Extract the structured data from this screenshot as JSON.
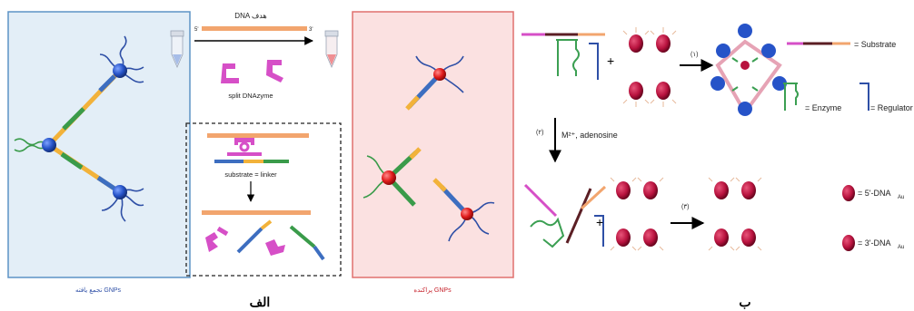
{
  "panel_a": {
    "target_label": "DNA هدف",
    "split_label": "split DNAzyme",
    "substrate_label": "substrate = linker",
    "left_caption": "GNPs تجمع یافته",
    "right_caption": "GNPs پراکنده",
    "panel_letter": "الف",
    "end5": "5'",
    "end3": "3'"
  },
  "panel_b": {
    "step1": "(۱)",
    "step2": "(۲)",
    "step3": "(۳)",
    "ion_label": "M²⁺, adenosine",
    "legend_substrate": "= Substrate",
    "legend_enzyme": "= Enzyme",
    "legend_regulator": "= Regulator",
    "legend_5dna": "= 5'-DNA",
    "legend_3dna": "= 3'-DNA",
    "legend_sub_au": "Au",
    "panel_letter": "ب",
    "plus": "+"
  },
  "colors": {
    "blue_panel_bg": "#e3eef7",
    "blue_panel_border": "#5d93c6",
    "red_panel_bg": "#fbe1e1",
    "red_panel_border": "#e0706e",
    "gnp_blue": "#2653c8",
    "gnp_red": "#e01b1b",
    "linker_orange": "#f2a56e",
    "dnazyme_magenta": "#d64fc7",
    "substrate_dark": "#5b1e24",
    "enzyme_green": "#3b9f52",
    "regulator_blue": "#2e4fa6",
    "au_particle": "#b8123e"
  }
}
